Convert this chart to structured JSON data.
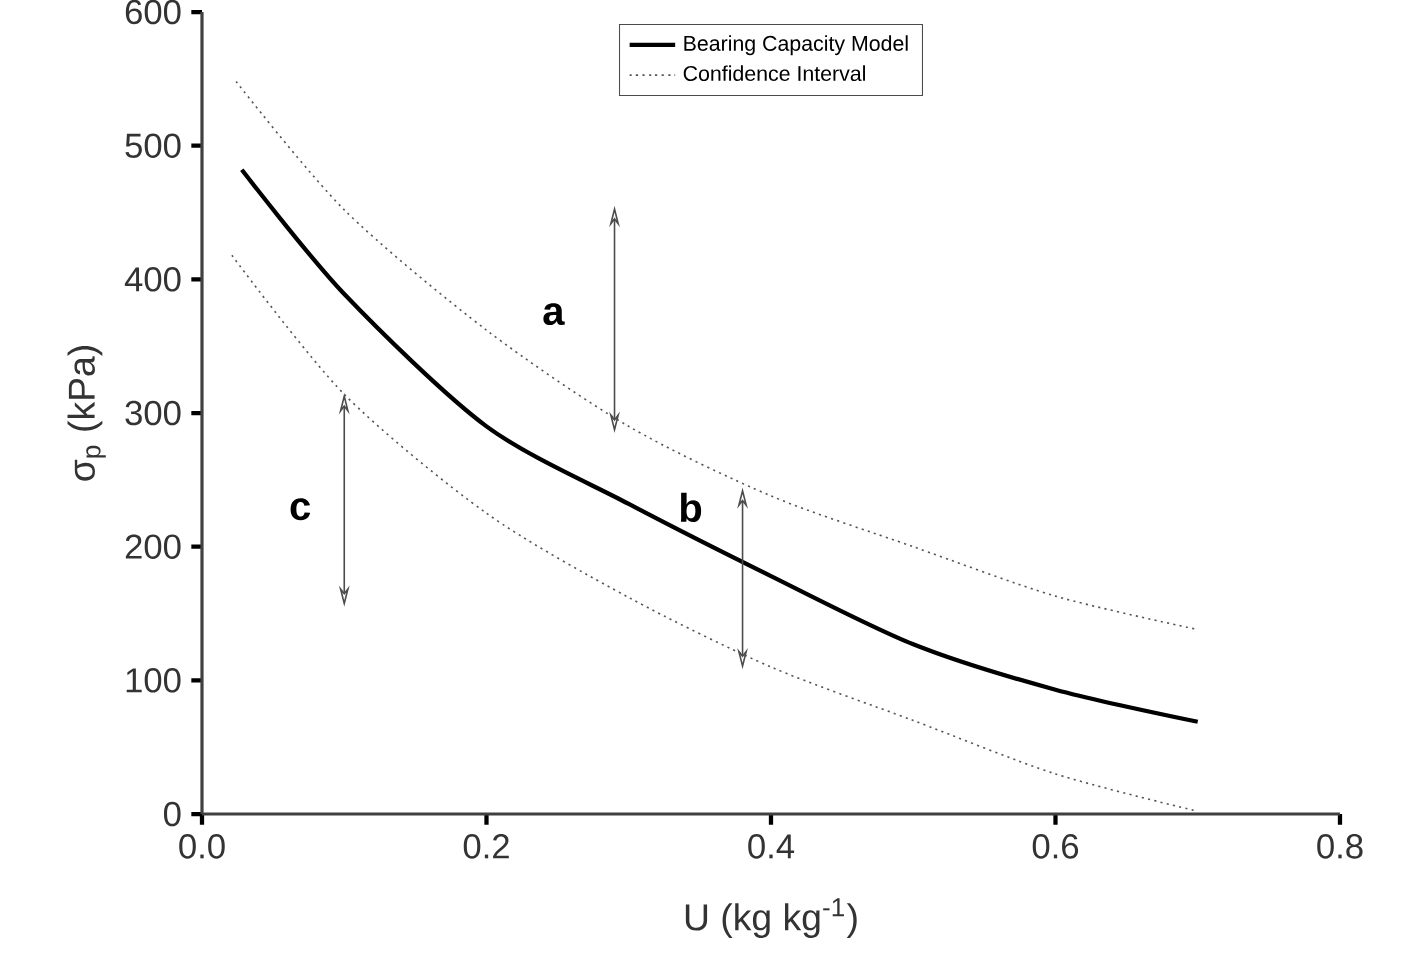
{
  "chart_data": {
    "type": "line",
    "xlabel": "U (kg kg$^{-1}$)",
    "ylabel": "σ$_{p}$ (kPa)",
    "xlim": [
      0,
      0.8
    ],
    "ylim": [
      0,
      600
    ],
    "xticks": [
      {
        "value": 0,
        "label": "0.0"
      },
      {
        "value": 0.2,
        "label": "0.2"
      },
      {
        "value": 0.4,
        "label": "0.4"
      },
      {
        "value": 0.6,
        "label": "0.6"
      },
      {
        "value": 0.8,
        "label": "0.8"
      }
    ],
    "yticks": [
      0,
      100,
      200,
      300,
      400,
      500,
      600
    ],
    "grid": false,
    "legend": "top",
    "marker": "none",
    "series": [
      {
        "name": "Bearing Capacity Model",
        "color": "#000000",
        "line_style": "solid",
        "x": [
          0.028,
          0.1,
          0.2,
          0.3,
          0.4,
          0.5,
          0.6,
          0.7
        ],
        "values": [
          482,
          389,
          290,
          232,
          178,
          127,
          93,
          69
        ]
      },
      {
        "name": "Confidence Interval",
        "color": "#555555",
        "line_style": "dotted",
        "x": [
          0.024,
          0.1,
          0.2,
          0.3,
          0.4,
          0.5,
          0.6,
          0.7
        ],
        "values": [
          548,
          452,
          362,
          290,
          238,
          200,
          163,
          138
        ]
      },
      {
        "color": "#555555",
        "line_style": "dotted",
        "x": [
          0.021,
          0.1,
          0.2,
          0.3,
          0.4,
          0.5,
          0.6,
          0.7
        ],
        "values": [
          418,
          314,
          225,
          162,
          110,
          70,
          30,
          2
        ]
      }
    ],
    "annotations": [
      "a",
      {
        "text": "b",
        "x": 0.38,
        "y": 189
      },
      "c"
    ]
  }
}
